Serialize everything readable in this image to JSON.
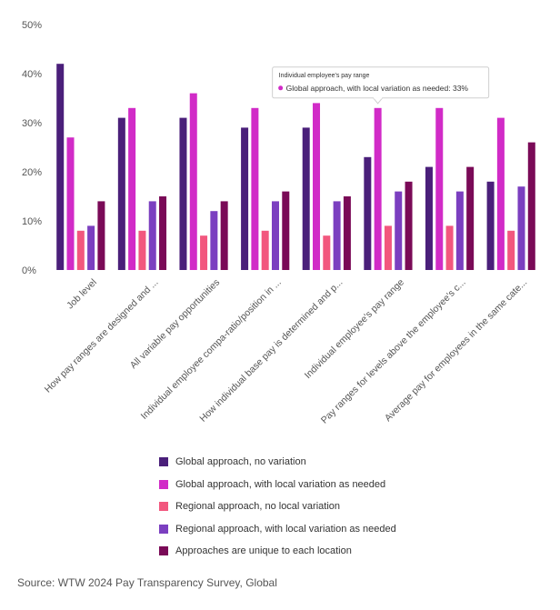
{
  "chart_data": {
    "type": "bar",
    "categories": [
      "Job level",
      "How pay ranges are designed and ...",
      "All variable pay opportunities",
      "Individual employee compa-ratio/position in ...",
      "How individual base pay is determined and p...",
      "Individual employee's pay range",
      "Pay ranges for levels above the employee's c...",
      "Average pay for employees in the same cate..."
    ],
    "series": [
      {
        "name": "Global approach, no variation",
        "color": "#4a1f7a",
        "values": [
          42,
          31,
          31,
          29,
          29,
          23,
          21,
          18
        ]
      },
      {
        "name": "Global approach, with local variation as needed",
        "color": "#d12bc7",
        "values": [
          27,
          33,
          36,
          33,
          34,
          33,
          33,
          31
        ]
      },
      {
        "name": "Regional approach, no local variation",
        "color": "#f2577e",
        "values": [
          8,
          8,
          7,
          8,
          7,
          9,
          9,
          8
        ]
      },
      {
        "name": "Regional approach, with local variation as needed",
        "color": "#7b3fc0",
        "values": [
          9,
          14,
          12,
          14,
          14,
          16,
          16,
          17
        ]
      },
      {
        "name": "Approaches are unique to each location",
        "color": "#7a0a57",
        "values": [
          14,
          15,
          14,
          16,
          15,
          18,
          21,
          26
        ]
      }
    ],
    "y_ticks": [
      "0%",
      "10%",
      "20%",
      "30%",
      "40%",
      "50%"
    ],
    "ylim": [
      0,
      50
    ],
    "grid": false,
    "tooltip": {
      "title": "Individual employee's pay range",
      "text": "Global approach, with local variation as needed: 33%",
      "category_index": 5,
      "series_index": 1
    }
  },
  "source": "Source: WTW 2024 Pay Transparency Survey, Global"
}
